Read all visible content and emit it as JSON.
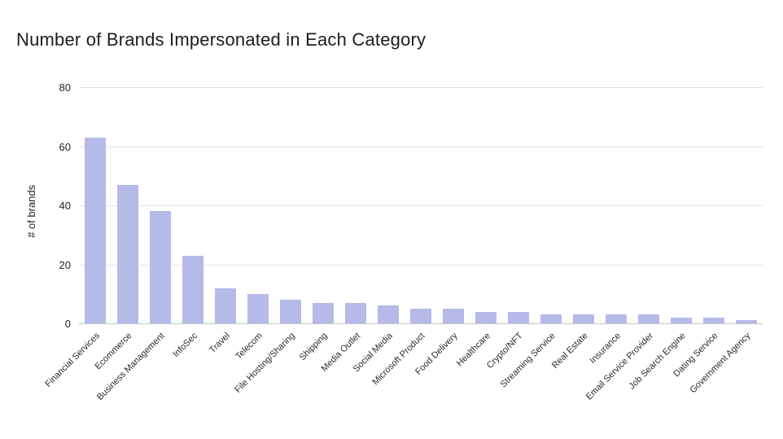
{
  "title": "Number of Brands Impersonated in Each Category",
  "chart_data": {
    "type": "bar",
    "title": "Number of Brands Impersonated in Each Category",
    "xlabel": "",
    "ylabel": "# of brands",
    "categories": [
      "Financial Services",
      "Ecommerce",
      "Business Management",
      "InfoSec",
      "Travel",
      "Telecom",
      "File Hosting/Sharing",
      "Shipping",
      "Media Outlet",
      "Social Media",
      "Microsoft Product",
      "Food Delivery",
      "Healthcare",
      "Crypto/NFT",
      "Streaming Service",
      "Real Estate",
      "Insurance",
      "Email Service Provider",
      "Job Search Engine",
      "Dating Service",
      "Government Agency"
    ],
    "values": [
      63,
      47,
      38,
      23,
      12,
      10,
      8,
      7,
      7,
      6,
      5,
      5,
      4,
      4,
      3,
      3,
      3,
      3,
      2,
      2,
      1
    ],
    "ylim": [
      0,
      80
    ],
    "yticks": [
      0,
      20,
      40,
      60,
      80
    ],
    "bar_color": "#b5bae8",
    "grid": "horizontal",
    "legend": false,
    "background": "#ffffff"
  }
}
